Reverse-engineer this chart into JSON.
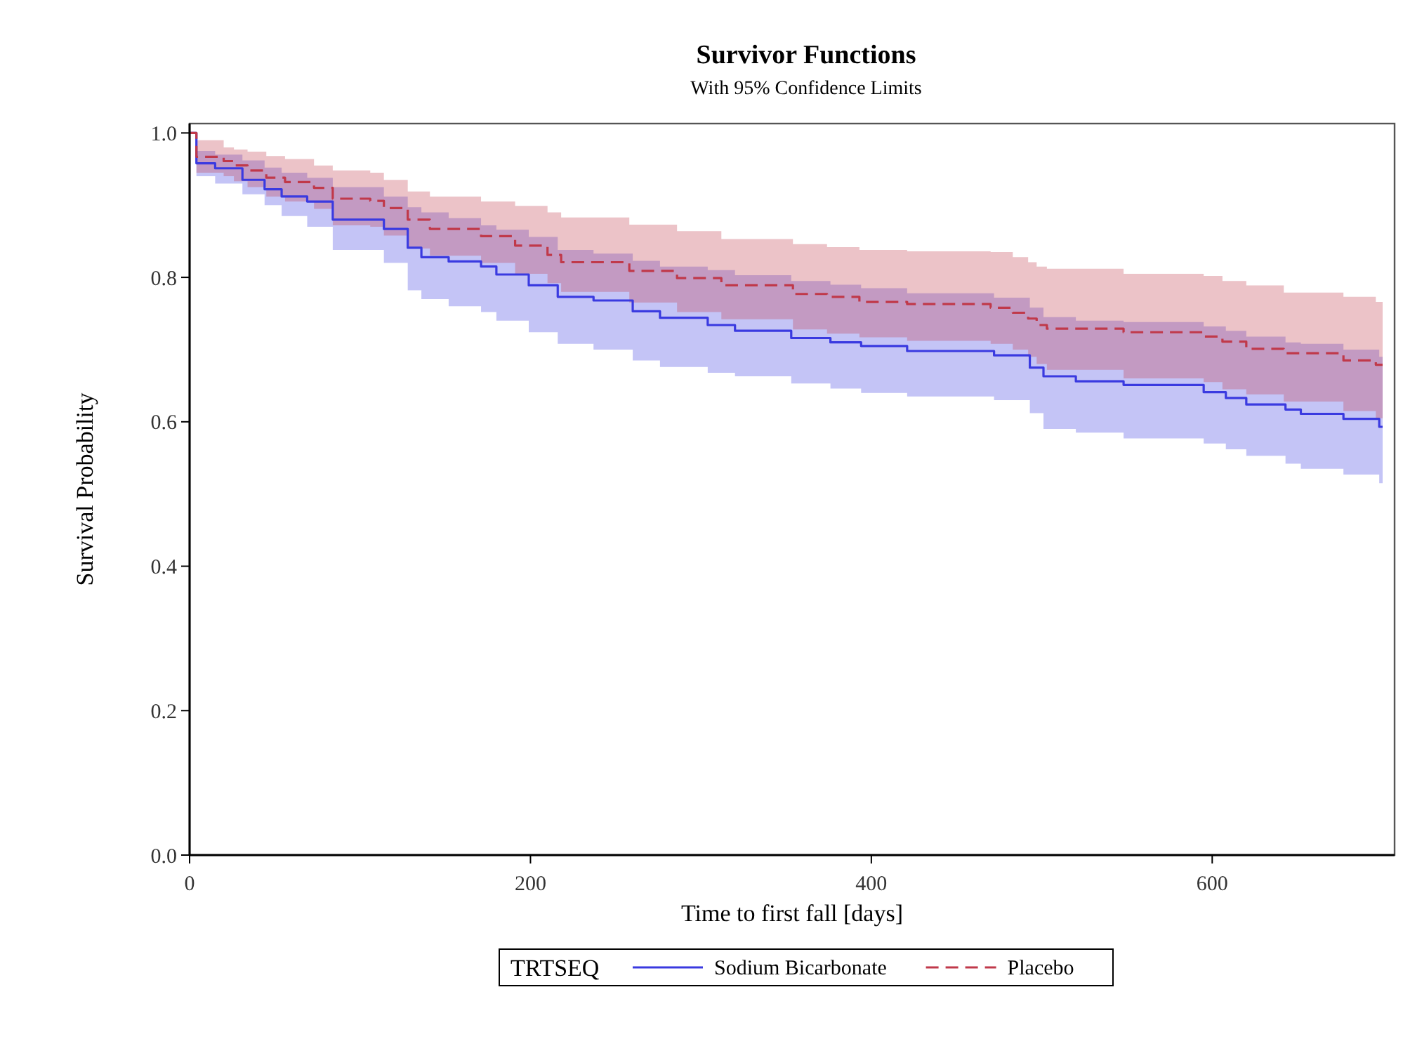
{
  "chart_data": {
    "type": "step",
    "title": "Survivor Functions",
    "subtitle": "With 95% Confidence Limits",
    "xlabel": "Time to first fall [days]",
    "ylabel": "Survival Probability",
    "legend_title": "TRTSEQ",
    "legend": "bottom",
    "grid": false,
    "xlim": [
      0,
      707
    ],
    "xticks": [
      0,
      200,
      400,
      600
    ],
    "ylim": [
      0,
      1.013
    ],
    "yticks": [
      {
        "value": 0,
        "label": "0.0"
      },
      0.2,
      0.4,
      0.6,
      0.8,
      {
        "value": 1,
        "label": "1.0"
      }
    ],
    "series": [
      {
        "name": "Sodium Bicarbonate",
        "color": "#3a3ae0",
        "line_style": "solid",
        "x": [
          0,
          4,
          15,
          31,
          44,
          54,
          69,
          84,
          114,
          128,
          136,
          152,
          171,
          180,
          199,
          216,
          237,
          260,
          276,
          304,
          320,
          353,
          376,
          394,
          421,
          472,
          493,
          501,
          520,
          548,
          595,
          608,
          620,
          643,
          652,
          677,
          698,
          700
        ],
        "values": [
          1.0,
          0.958,
          0.951,
          0.935,
          0.922,
          0.912,
          0.905,
          0.88,
          0.867,
          0.841,
          0.828,
          0.822,
          0.815,
          0.804,
          0.789,
          0.773,
          0.768,
          0.753,
          0.744,
          0.734,
          0.726,
          0.716,
          0.71,
          0.705,
          0.698,
          0.692,
          0.675,
          0.663,
          0.656,
          0.651,
          0.641,
          0.633,
          0.624,
          0.617,
          0.611,
          0.604,
          0.593,
          0.593
        ],
        "lower": [
          1.0,
          0.94,
          0.93,
          0.915,
          0.9,
          0.885,
          0.87,
          0.838,
          0.82,
          0.782,
          0.77,
          0.76,
          0.752,
          0.74,
          0.724,
          0.708,
          0.7,
          0.685,
          0.676,
          0.668,
          0.663,
          0.653,
          0.646,
          0.64,
          0.635,
          0.63,
          0.612,
          0.59,
          0.585,
          0.577,
          0.57,
          0.562,
          0.553,
          0.542,
          0.535,
          0.527,
          0.515,
          0.51
        ],
        "upper": [
          1.0,
          0.975,
          0.97,
          0.962,
          0.952,
          0.945,
          0.938,
          0.925,
          0.912,
          0.897,
          0.89,
          0.882,
          0.872,
          0.866,
          0.856,
          0.838,
          0.833,
          0.823,
          0.815,
          0.81,
          0.803,
          0.795,
          0.79,
          0.785,
          0.778,
          0.772,
          0.758,
          0.745,
          0.74,
          0.738,
          0.732,
          0.726,
          0.718,
          0.71,
          0.708,
          0.7,
          0.69,
          0.69
        ]
      },
      {
        "name": "Placebo",
        "color": "#c0394a",
        "line_style": "dashed",
        "x": [
          0,
          4,
          20,
          26,
          34,
          45,
          56,
          73,
          84,
          106,
          114,
          128,
          141,
          171,
          191,
          210,
          218,
          258,
          286,
          312,
          354,
          374,
          393,
          421,
          470,
          483,
          492,
          497,
          503,
          548,
          595,
          606,
          620,
          642,
          677,
          696,
          700
        ],
        "values": [
          1.0,
          0.967,
          0.961,
          0.955,
          0.948,
          0.938,
          0.932,
          0.924,
          0.909,
          0.906,
          0.896,
          0.88,
          0.867,
          0.857,
          0.844,
          0.831,
          0.821,
          0.809,
          0.799,
          0.789,
          0.777,
          0.773,
          0.766,
          0.763,
          0.758,
          0.751,
          0.743,
          0.734,
          0.729,
          0.724,
          0.718,
          0.711,
          0.701,
          0.695,
          0.685,
          0.679,
          0.679
        ],
        "lower": [
          1.0,
          0.945,
          0.94,
          0.933,
          0.925,
          0.912,
          0.905,
          0.895,
          0.872,
          0.87,
          0.858,
          0.84,
          0.83,
          0.82,
          0.805,
          0.792,
          0.78,
          0.765,
          0.752,
          0.742,
          0.728,
          0.722,
          0.717,
          0.712,
          0.708,
          0.7,
          0.69,
          0.68,
          0.672,
          0.66,
          0.655,
          0.645,
          0.638,
          0.628,
          0.615,
          0.605,
          0.6
        ],
        "upper": [
          1.0,
          0.99,
          0.98,
          0.977,
          0.974,
          0.968,
          0.964,
          0.955,
          0.948,
          0.945,
          0.935,
          0.919,
          0.912,
          0.905,
          0.899,
          0.89,
          0.883,
          0.873,
          0.864,
          0.853,
          0.846,
          0.842,
          0.838,
          0.836,
          0.835,
          0.828,
          0.821,
          0.815,
          0.812,
          0.805,
          0.802,
          0.795,
          0.789,
          0.779,
          0.773,
          0.766,
          0.766
        ]
      }
    ]
  }
}
